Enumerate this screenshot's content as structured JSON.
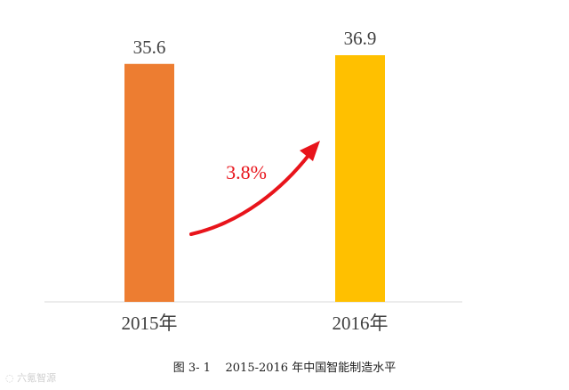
{
  "chart_data": {
    "type": "bar",
    "categories": [
      "2015年",
      "2016年"
    ],
    "values": [
      35.6,
      36.9
    ],
    "data_labels": [
      "35.6",
      "36.9"
    ],
    "colors": [
      "#ED7D31",
      "#FFC000"
    ],
    "axis_color": "#d9d9d9",
    "annotation": {
      "text": "3.8%",
      "color": "#e8141b",
      "type": "arrow",
      "from": "2015年",
      "to": "2016年"
    },
    "caption": {
      "prefix": "图 3- 1",
      "text": "2015-2016 年中国智能制造水平"
    },
    "y_axis_visible": false,
    "grid": false
  },
  "watermark": {
    "icon": "watermark-logo-icon",
    "text": "六氪智源"
  }
}
